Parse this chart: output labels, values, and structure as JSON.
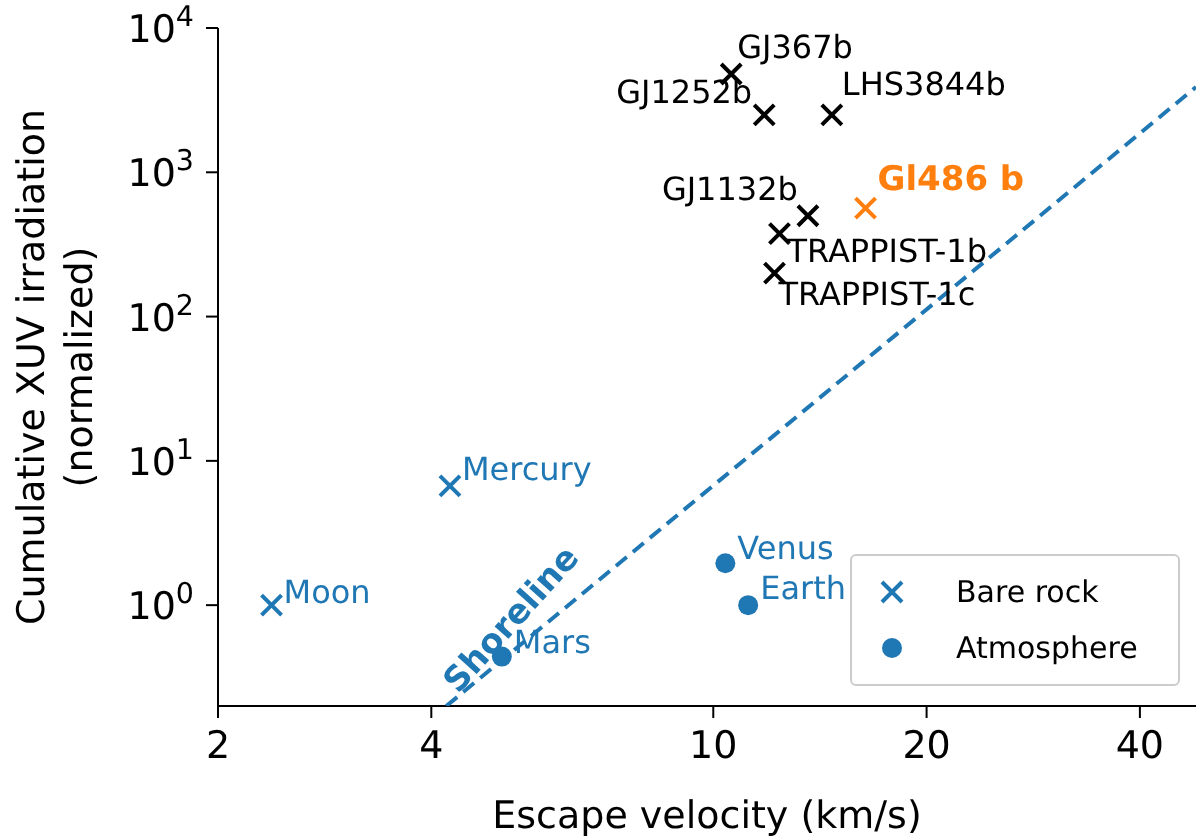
{
  "chart_data": {
    "type": "scatter",
    "xlabel": "Escape velocity (km/s)",
    "ylabel": "Cumulative XUV irradiation\n(normalized)",
    "log": "xy",
    "xlim": [
      2,
      48
    ],
    "ylim": [
      0.2,
      10000
    ],
    "xticks": [
      2,
      4,
      10,
      20,
      40
    ],
    "yticks": [
      {
        "value": 1,
        "label": "10$^{0}$"
      },
      {
        "value": 10,
        "label": "10$^{1}$"
      },
      {
        "value": 100,
        "label": "10$^{2}$"
      },
      {
        "value": 1000,
        "label": "10$^{3}$"
      },
      {
        "value": 10000,
        "label": "10$^{4}$"
      }
    ],
    "grid": false,
    "legend": "bottom right",
    "series": [
      {
        "name": "Bare rock",
        "color": "#1f77b4",
        "marker": "cross",
        "x": [
          2.38,
          4.25
        ],
        "values": [
          1,
          6.7
        ]
      },
      {
        "name": "Atmosphere",
        "color": "#1f77b4",
        "marker": "circle",
        "x": [
          5.03,
          10.4,
          11.2
        ],
        "values": [
          0.44,
          1.95,
          1
        ]
      },
      {
        "color": "#000000",
        "marker": "cross",
        "x": [
          10.6,
          11.8,
          14.7,
          13.6,
          12.4,
          12.2
        ],
        "values": [
          4800,
          2500,
          2500,
          500,
          376,
          200
        ]
      },
      {
        "color": "#ff7f0e",
        "marker": "cross",
        "x": [
          16.4
        ],
        "values": [
          565
        ]
      },
      {
        "type": "line",
        "color": "#1f77b4",
        "line_style": "dashed",
        "marker": "none",
        "x": [
          4.2,
          48
        ],
        "values": [
          0.2,
          3900
        ]
      }
    ],
    "annotations": [
      {
        "text": "Moon",
        "x": 2.38,
        "y": 1
      },
      {
        "text": "Mercury",
        "x": 4.25,
        "y": 6.7
      },
      {
        "text": "Mars",
        "x": 5.03,
        "y": 0.44
      },
      {
        "text": "Venus",
        "x": 10.4,
        "y": 1.95
      },
      {
        "text": "Earth",
        "x": 11.2,
        "y": 1
      },
      {
        "text": "GJ367b",
        "x": 10.6,
        "y": 4800
      },
      {
        "text": "GJ1252b",
        "x": 11.8,
        "y": 2500
      },
      {
        "text": "LHS3844b",
        "x": 14.7,
        "y": 2500
      },
      {
        "text": "GJ1132b",
        "x": 13.6,
        "y": 500
      },
      {
        "text": "TRAPPIST-1b",
        "x": 12.4,
        "y": 376
      },
      {
        "text": "TRAPPIST-1c",
        "x": 12.2,
        "y": 200
      },
      {
        "text": "Gl486 b",
        "x": 16.4,
        "y": 565
      },
      "Shoreline"
    ]
  }
}
